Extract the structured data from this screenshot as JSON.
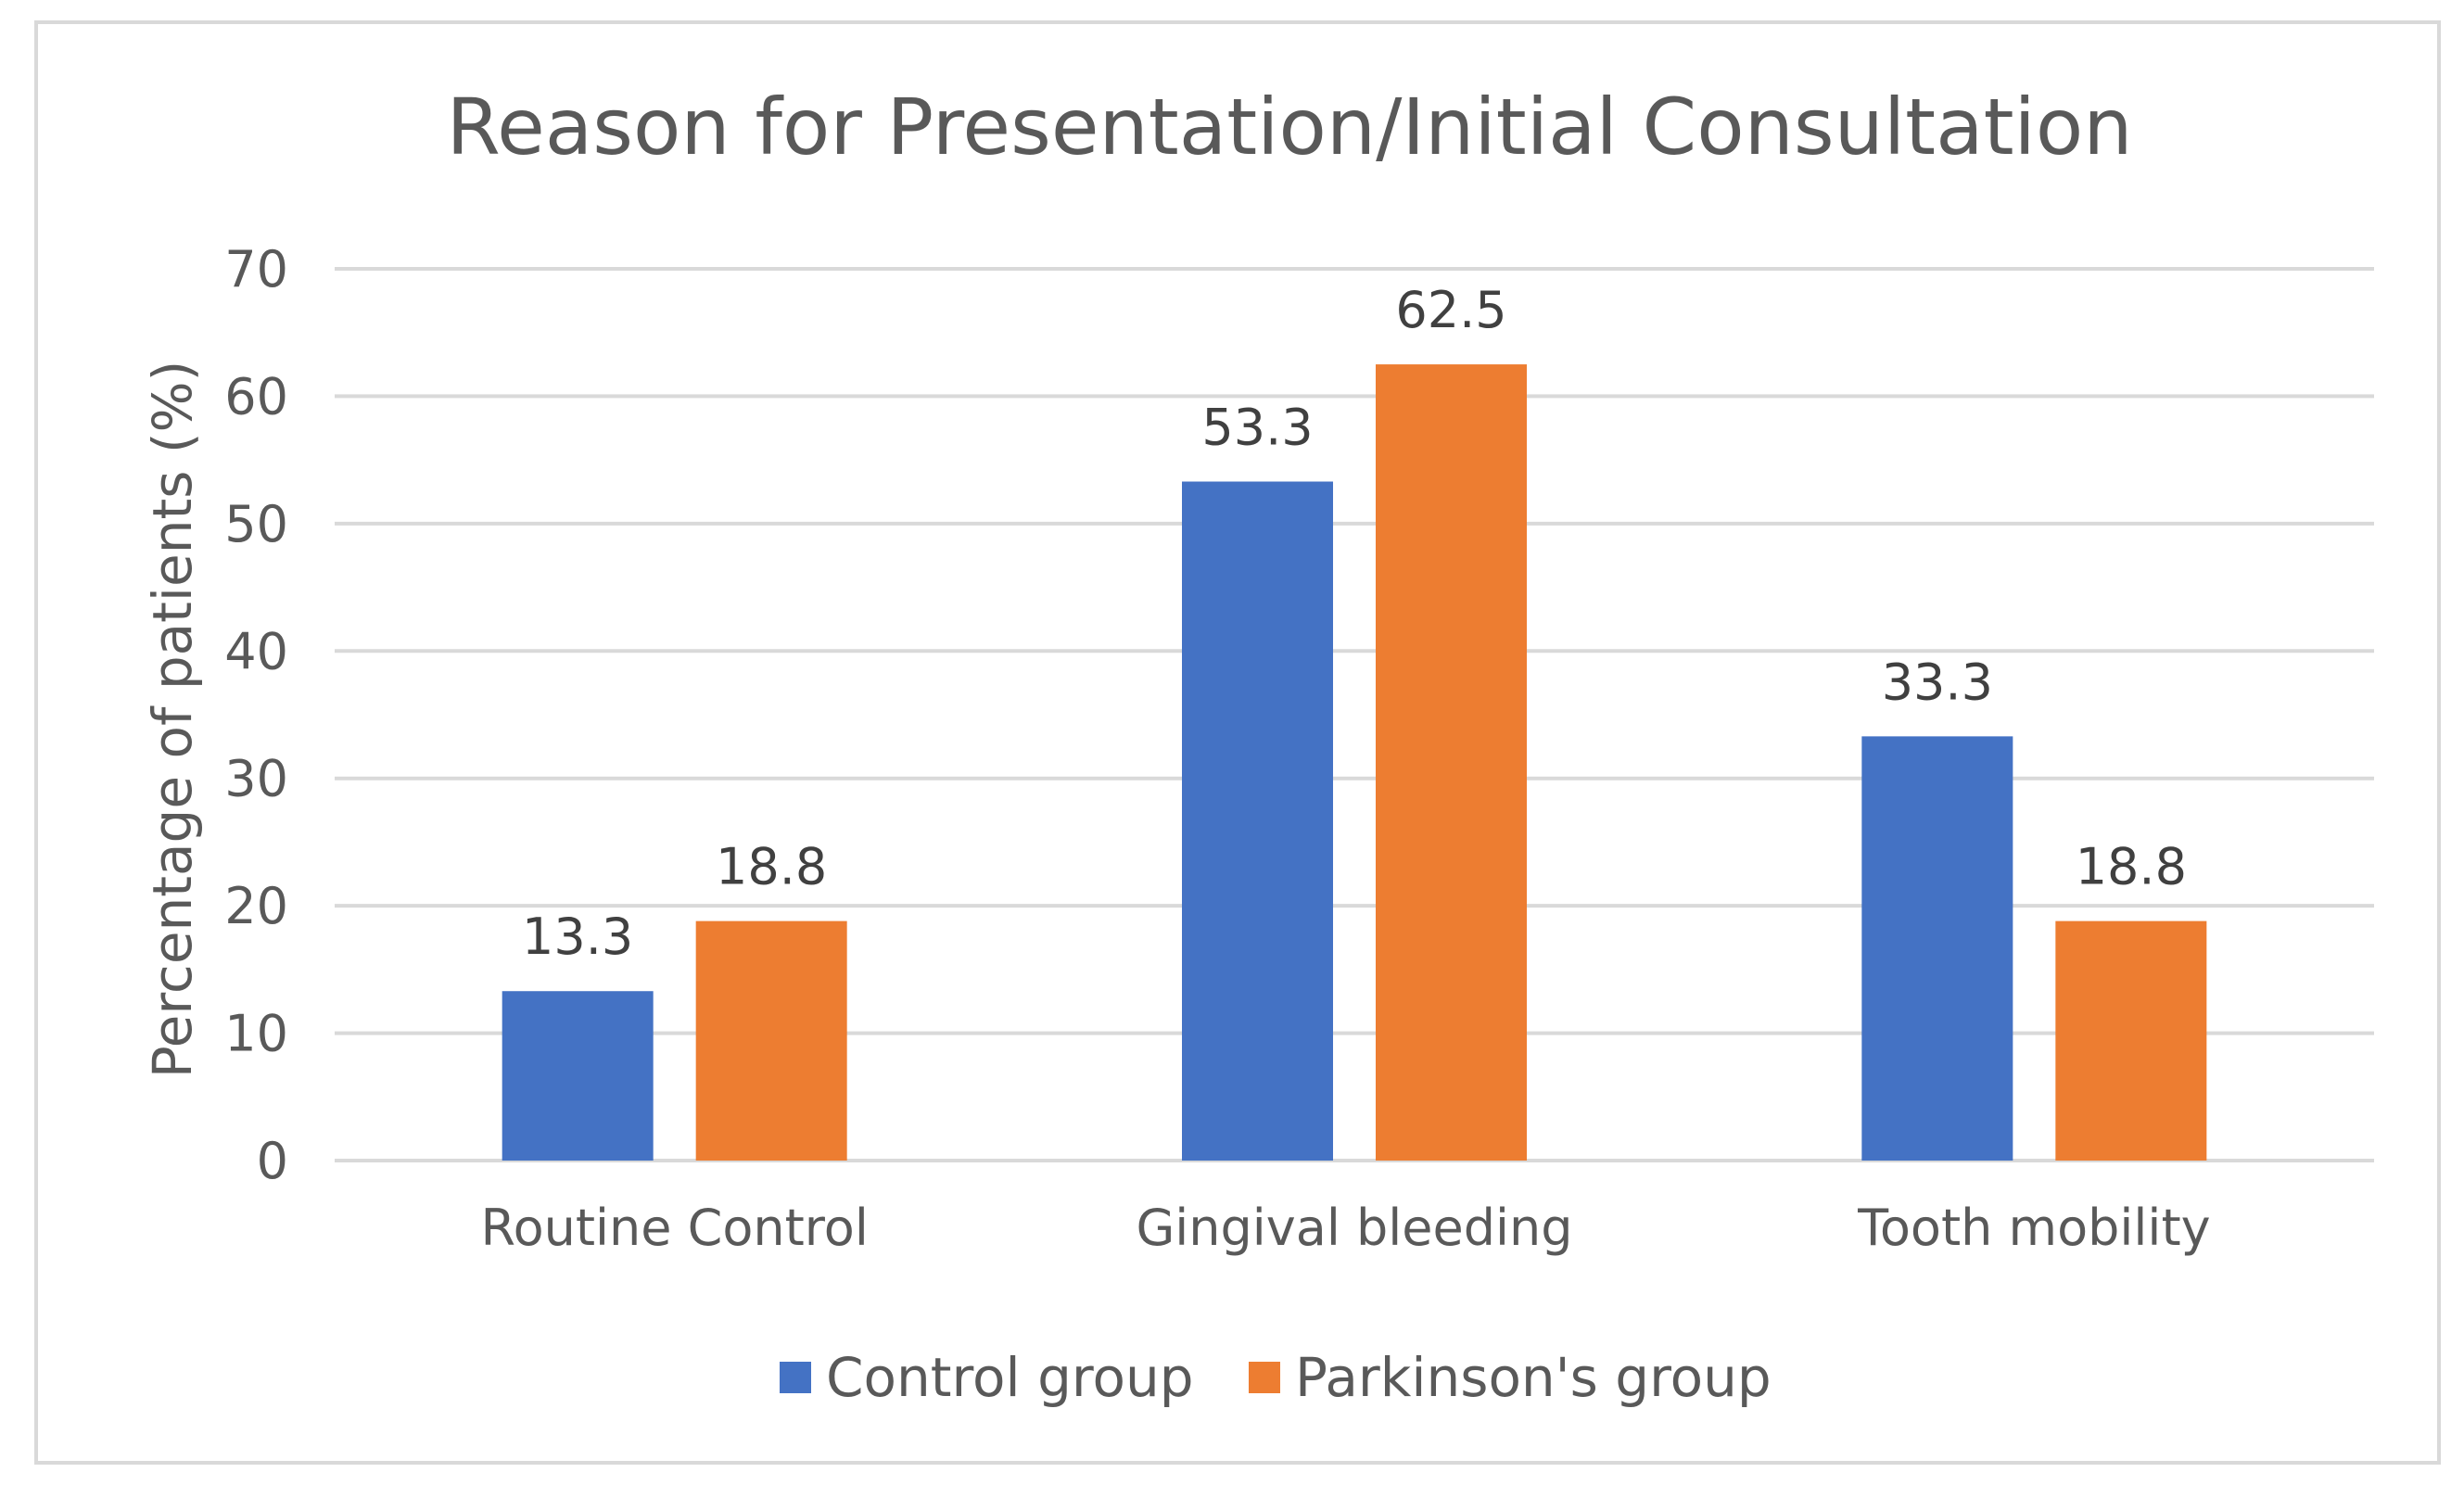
{
  "chart_data": {
    "type": "bar",
    "title": "Reason for Presentation/Initial Consultation",
    "xlabel": "",
    "ylabel": "Percentage of patients (%)",
    "categories": [
      "Routine Control",
      "Gingival bleeding",
      "Tooth mobility"
    ],
    "series": [
      {
        "name": "Control group",
        "color": "#4472c4",
        "values": [
          13.3,
          53.3,
          33.3
        ],
        "labels": [
          "13.3",
          "53.3",
          "33.3"
        ]
      },
      {
        "name": "Parkinson's group",
        "color": "#ed7d31",
        "values": [
          18.8,
          62.5,
          18.8
        ],
        "labels": [
          "18.8",
          "62.5",
          "18.8"
        ]
      }
    ],
    "ylim": [
      0,
      70
    ],
    "yticks": [
      "0",
      "10",
      "20",
      "30",
      "40",
      "50",
      "60",
      "70"
    ],
    "grid": true,
    "legend_position": "bottom"
  }
}
